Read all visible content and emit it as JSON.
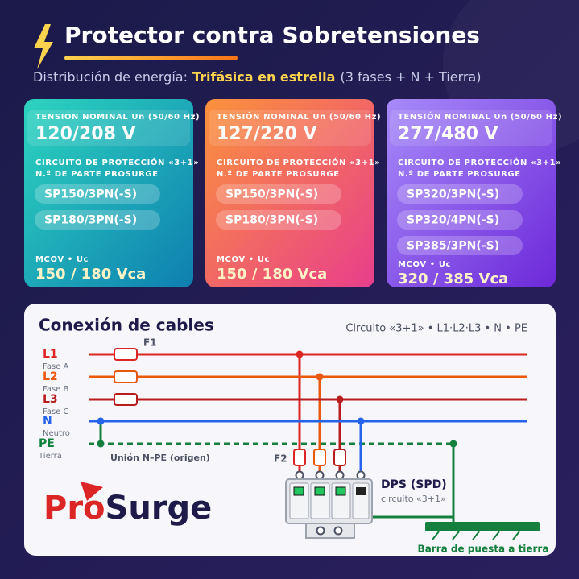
{
  "header": {
    "title": "Protector contra Sobretensiones",
    "subtitle_prefix": "Distribución de energía:",
    "subtitle_highlight": "Trifásica en estrella",
    "subtitle_suffix": "(3 fases + N + Tierra)"
  },
  "cards": [
    {
      "voltage_label": "TENSIÓN NOMINAL Un (50/60 Hz)",
      "voltage": "120/208 V",
      "circuit_label": "CIRCUITO DE PROTECCIÓN «3+1»",
      "part_label": "N.º DE PARTE PROSURGE",
      "parts": [
        "SP150/3PN(-S)",
        "SP180/3PN(-S)"
      ],
      "mcov_label": "MCOV • Uc",
      "mcov": "150 / 180 Vca"
    },
    {
      "voltage_label": "TENSIÓN NOMINAL Un (50/60 Hz)",
      "voltage": "127/220 V",
      "circuit_label": "CIRCUITO DE PROTECCIÓN «3+1»",
      "part_label": "N.º DE PARTE PROSURGE",
      "parts": [
        "SP150/3PN(-S)",
        "SP180/3PN(-S)"
      ],
      "mcov_label": "MCOV • Uc",
      "mcov": "150 / 180 Vca"
    },
    {
      "voltage_label": "TENSIÓN NOMINAL Un (50/60 Hz)",
      "voltage": "277/480 V",
      "circuit_label": "CIRCUITO DE PROTECCIÓN «3+1»",
      "part_label": "N.º DE PARTE PROSURGE",
      "parts": [
        "SP320/3PN(-S)",
        "SP320/4PN(-S)",
        "SP385/3PN(-S)"
      ],
      "mcov_label": "MCOV • Uc",
      "mcov": "320 / 385 Vca"
    }
  ],
  "diagram": {
    "title": "Conexión de cables",
    "subtitle": "Circuito «3+1» • L1·L2·L3 • N • PE",
    "lines": [
      {
        "label": "L1",
        "sublabel": "Fase A"
      },
      {
        "label": "L2",
        "sublabel": "Fase B"
      },
      {
        "label": "L3",
        "sublabel": "Fase C"
      },
      {
        "label": "N",
        "sublabel": "Neutro"
      },
      {
        "label": "PE",
        "sublabel": "Tierra"
      }
    ],
    "f1": "F1",
    "f2": "F2",
    "bond": "Unión N–PE (origen)",
    "spd": "DPS (SPD)",
    "spd_sub": "circuito «3+1»",
    "ground_bar": "Barra de puesta a tierra"
  },
  "logo": {
    "pro": "Pro",
    "surge": "Surge"
  }
}
